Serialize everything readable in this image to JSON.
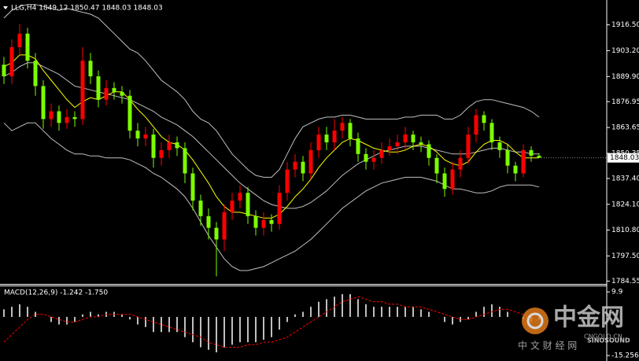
{
  "chart_data": [
    {
      "type": "candlestick",
      "title": "LLG,H4  1849.12 1850.47 1848.03 1848.03",
      "up_color": "#ff0000",
      "down_color": "#7cfc00",
      "open": [
        1896,
        1890,
        1905,
        1912,
        1898,
        1885,
        1868,
        1872,
        1866,
        1869,
        1868,
        1898,
        1890,
        1878,
        1884,
        1882,
        1880,
        1862,
        1858,
        1860,
        1848,
        1852,
        1856,
        1853,
        1840,
        1826,
        1818,
        1812,
        1806,
        1820,
        1826,
        1830,
        1818,
        1812,
        1816,
        1814,
        1830,
        1842,
        1846,
        1840,
        1852,
        1860,
        1856,
        1862,
        1866,
        1858,
        1850,
        1846,
        1848,
        1852,
        1854,
        1856,
        1860,
        1856,
        1855,
        1848,
        1840,
        1832,
        1842,
        1848,
        1860,
        1870,
        1866,
        1856,
        1852,
        1844,
        1840,
        1852,
        1849.12
      ],
      "high": [
        1900,
        1909,
        1917,
        1915,
        1902,
        1888,
        1876,
        1875,
        1873,
        1872,
        1905,
        1902,
        1893,
        1888,
        1887,
        1885,
        1883,
        1866,
        1864,
        1863,
        1856,
        1860,
        1859,
        1856,
        1843,
        1829,
        1822,
        1815,
        1824,
        1830,
        1834,
        1833,
        1821,
        1820,
        1819,
        1834,
        1846,
        1850,
        1849,
        1856,
        1864,
        1864,
        1868,
        1869,
        1868,
        1861,
        1853,
        1852,
        1856,
        1858,
        1860,
        1864,
        1862,
        1859,
        1857,
        1850,
        1843,
        1846,
        1852,
        1864,
        1873,
        1872,
        1868,
        1859,
        1855,
        1846,
        1855,
        1854,
        1850.47
      ],
      "low": [
        1886,
        1886,
        1901,
        1894,
        1880,
        1863,
        1864,
        1862,
        1863,
        1864,
        1865,
        1886,
        1874,
        1875,
        1878,
        1876,
        1858,
        1854,
        1854,
        1843,
        1844,
        1848,
        1849,
        1835,
        1821,
        1813,
        1806,
        1787,
        1800,
        1816,
        1822,
        1814,
        1808,
        1808,
        1810,
        1811,
        1826,
        1838,
        1836,
        1837,
        1848,
        1852,
        1852,
        1858,
        1854,
        1846,
        1842,
        1842,
        1845,
        1849,
        1850,
        1852,
        1852,
        1851,
        1844,
        1835,
        1828,
        1829,
        1838,
        1845,
        1856,
        1862,
        1852,
        1848,
        1840,
        1836,
        1838,
        1846,
        1848.03
      ],
      "close": [
        1890,
        1905,
        1912,
        1898,
        1885,
        1868,
        1872,
        1866,
        1869,
        1868,
        1898,
        1890,
        1878,
        1884,
        1882,
        1880,
        1862,
        1858,
        1860,
        1848,
        1852,
        1856,
        1853,
        1840,
        1826,
        1818,
        1812,
        1806,
        1820,
        1826,
        1830,
        1818,
        1812,
        1816,
        1814,
        1830,
        1842,
        1846,
        1840,
        1852,
        1860,
        1856,
        1862,
        1866,
        1858,
        1850,
        1846,
        1848,
        1852,
        1854,
        1856,
        1860,
        1856,
        1855,
        1848,
        1840,
        1832,
        1842,
        1848,
        1860,
        1870,
        1866,
        1856,
        1852,
        1844,
        1840,
        1852,
        1849.12,
        1848.03
      ],
      "lines": [
        {
          "color": "#c0c0c0",
          "values": [
            1920,
            1924,
            1926,
            1927,
            1927,
            1926,
            1925,
            1924,
            1925,
            1924,
            1923,
            1922,
            1920,
            1916,
            1912,
            1908,
            1904,
            1902,
            1898,
            1893,
            1888,
            1885,
            1882,
            1878,
            1872,
            1868,
            1866,
            1862,
            1856,
            1850,
            1846,
            1842,
            1839,
            1838,
            1838,
            1842,
            1850,
            1858,
            1864,
            1866,
            1868,
            1869,
            1869,
            1870,
            1870,
            1869,
            1868,
            1868,
            1868,
            1868,
            1868,
            1869,
            1869,
            1870,
            1870,
            1870,
            1868,
            1868,
            1870,
            1874,
            1877,
            1878,
            1878,
            1877,
            1876,
            1875,
            1874,
            1872,
            1869
          ]
        },
        {
          "color": "#c0c0c0",
          "values": [
            1890,
            1892,
            1895,
            1897,
            1897,
            1895,
            1893,
            1891,
            1888,
            1885,
            1884,
            1883,
            1882,
            1881,
            1880,
            1879,
            1878,
            1876,
            1874,
            1872,
            1869,
            1867,
            1865,
            1862,
            1859,
            1855,
            1851,
            1847,
            1843,
            1839,
            1835,
            1832,
            1829,
            1826,
            1824,
            1823,
            1822,
            1822,
            1823,
            1825,
            1828,
            1831,
            1835,
            1839,
            1842,
            1845,
            1847,
            1849,
            1851,
            1852,
            1853,
            1854,
            1854,
            1854,
            1853,
            1852,
            1851,
            1850,
            1850,
            1850,
            1851,
            1852,
            1853,
            1853,
            1852,
            1851,
            1851,
            1850,
            1850
          ]
        },
        {
          "color": "#c0c0c0",
          "values": [
            1866,
            1862,
            1864,
            1866,
            1866,
            1862,
            1858,
            1855,
            1852,
            1850,
            1850,
            1849,
            1849,
            1848,
            1848,
            1848,
            1847,
            1845,
            1843,
            1840,
            1838,
            1835,
            1832,
            1828,
            1822,
            1815,
            1808,
            1802,
            1796,
            1792,
            1790,
            1790,
            1791,
            1792,
            1794,
            1796,
            1798,
            1800,
            1803,
            1806,
            1810,
            1814,
            1818,
            1822,
            1825,
            1828,
            1831,
            1833,
            1835,
            1836,
            1837,
            1838,
            1838,
            1838,
            1837,
            1836,
            1834,
            1832,
            1832,
            1831,
            1830,
            1830,
            1831,
            1833,
            1834,
            1834,
            1834,
            1834,
            1833
          ]
        },
        {
          "color": "#ffff00",
          "values": [
            1895,
            1897,
            1901,
            1901,
            1899,
            1893,
            1888,
            1883,
            1878,
            1874,
            1877,
            1879,
            1878,
            1880,
            1882,
            1882,
            1878,
            1873,
            1869,
            1864,
            1859,
            1856,
            1855,
            1852,
            1847,
            1841,
            1835,
            1828,
            1823,
            1820,
            1820,
            1819,
            1818,
            1817,
            1817,
            1819,
            1823,
            1828,
            1832,
            1837,
            1843,
            1848,
            1852,
            1856,
            1858,
            1857,
            1855,
            1853,
            1852,
            1851,
            1851,
            1852,
            1854,
            1855,
            1854,
            1851,
            1847,
            1845,
            1844,
            1846,
            1851,
            1855,
            1857,
            1857,
            1855,
            1851,
            1848,
            1848,
            1848
          ]
        }
      ],
      "ylim": [
        1783.5,
        1928.5
      ],
      "yticks": [
        {
          "value": 1916.5,
          "label": "1916.50"
        },
        {
          "value": 1903.2,
          "label": "1903.20"
        },
        {
          "value": 1889.9,
          "label": "1889.90"
        },
        1876.95,
        1863.65,
        1850.35,
        {
          "value": 1837.4,
          "label": "1837.40"
        },
        {
          "value": 1824.1,
          "label": "1824.10"
        },
        {
          "value": 1810.8,
          "label": "1810.80"
        },
        {
          "value": 1797.5,
          "label": "1797.50"
        },
        1784.55
      ]
    },
    {
      "type": "macd",
      "title": "MACD(12,26,9) -1.242 -1.750",
      "color": "#ffffff",
      "signal_color": "#ff0000",
      "values": [
        3,
        4,
        5,
        4,
        2,
        0,
        -2,
        -3,
        -3,
        -2,
        1,
        2,
        1,
        2,
        2,
        1,
        -1,
        -3,
        -4,
        -6,
        -6,
        -6,
        -6,
        -8,
        -10,
        -12,
        -13,
        -14,
        -12,
        -11,
        -10,
        -10,
        -10,
        -9,
        -8,
        -5,
        -2,
        1,
        2,
        4,
        6,
        7,
        8,
        9,
        9,
        7,
        5,
        4,
        4,
        4,
        4,
        4,
        4,
        3,
        2,
        0,
        -2,
        -3,
        -2,
        -1,
        2,
        4,
        5,
        4,
        2,
        0,
        -1,
        -2,
        -1.242
      ],
      "signal": [
        -10,
        -7,
        -4,
        -1,
        1,
        1,
        0,
        -1,
        -2,
        -2,
        -1,
        0,
        0,
        1,
        1,
        1,
        1,
        0,
        -1,
        -2,
        -3,
        -4,
        -5,
        -6,
        -7,
        -8,
        -10,
        -11,
        -12,
        -12,
        -12,
        -11,
        -11,
        -10,
        -10,
        -9,
        -8,
        -6,
        -4,
        -2,
        0,
        2,
        4,
        6,
        7,
        8,
        7,
        6,
        6,
        5,
        5,
        4,
        4,
        4,
        3,
        2,
        1,
        0,
        -1,
        -1,
        0,
        1,
        2,
        3,
        3,
        2,
        1,
        0,
        -1.75
      ],
      "ylim": [
        -16.8,
        12.1
      ],
      "yticks": [
        9.9,
        -15.256
      ]
    }
  ],
  "watermark": {
    "brand": "中金网",
    "domain": "CNGOLD.CN",
    "sub": "SINOSOUND",
    "tagline": "中 文 财 经 网"
  }
}
